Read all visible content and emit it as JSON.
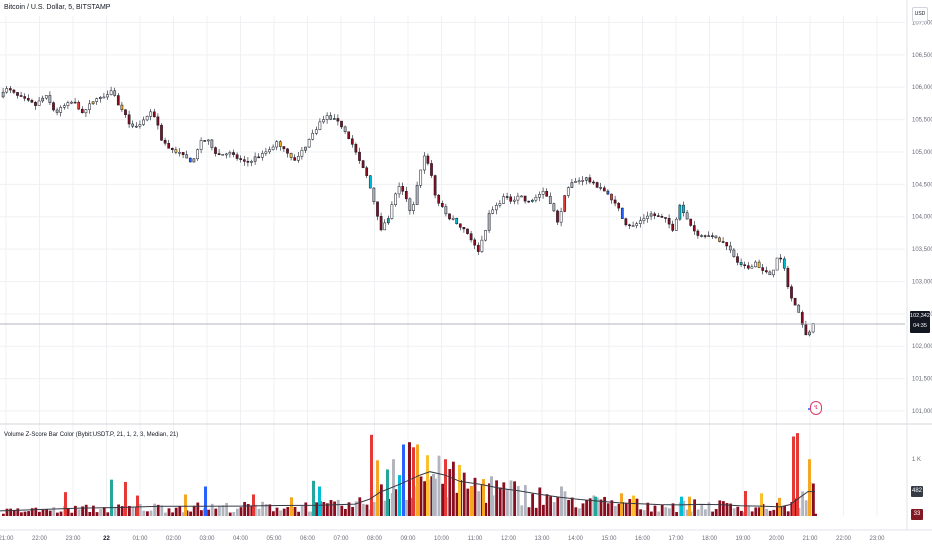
{
  "title": "Bitcoin / U.S. Dollar, 5, BITSTAMP",
  "currency_button": "USD",
  "price_badge": {
    "price": "102,342",
    "countdown": "04:35"
  },
  "volume_badges": [
    {
      "value": "482",
      "color": "#363a45"
    },
    {
      "value": "33",
      "color": "#801922"
    }
  ],
  "indicator_title": "Volume Z-Score Bar Color (Bybit:USDT.P, 21, 1, 2, 3, Median, 21)",
  "dividend_marker": "↯",
  "colors": {
    "up": "#ffffff",
    "down": "#880e1f",
    "gray": "#b2b5be",
    "orange": "#f5a623",
    "teal": "#26a69a",
    "cyan": "#00bcd4",
    "blue": "#2962ff",
    "red": "#e53935",
    "yellow": "#fbc02d",
    "ma_line": "#363a45",
    "grid": "#eef0f3"
  },
  "chart_data": {
    "type": "candlestick",
    "price_axis": {
      "ticks": [
        101000,
        101500,
        102000,
        102500,
        103000,
        103500,
        104000,
        104500,
        105000,
        105500,
        106000,
        106500,
        107000
      ],
      "tick_labels": [
        "101,000",
        "101,500",
        "102,000",
        "102,500",
        "103,000",
        "103,500",
        "104,000",
        "104,500",
        "105,000",
        "105,500",
        "106,000",
        "106,500",
        "107,000"
      ],
      "range": [
        100860,
        107100
      ]
    },
    "time_axis": {
      "labels": [
        "21:00",
        "22:00",
        "23:00",
        "22",
        "01:00",
        "02:00",
        "03:00",
        "04:00",
        "05:00",
        "06:00",
        "07:00",
        "08:00",
        "09:00",
        "10:00",
        "11:00",
        "12:00",
        "13:00",
        "14:00",
        "15:00",
        "16:00",
        "17:00",
        "18:00",
        "19:00",
        "20:00",
        "21:00",
        "22:00",
        "23:00"
      ]
    },
    "last_price": 102342,
    "price_path": [
      [
        0,
        105850
      ],
      [
        7,
        105980
      ],
      [
        12,
        105950
      ],
      [
        20,
        105860
      ],
      [
        30,
        105780
      ],
      [
        38,
        105720
      ],
      [
        48,
        105870
      ],
      [
        58,
        105600
      ],
      [
        66,
        105700
      ],
      [
        76,
        105780
      ],
      [
        86,
        105600
      ],
      [
        96,
        105800
      ],
      [
        106,
        105850
      ],
      [
        114,
        105980
      ],
      [
        122,
        105700
      ],
      [
        128,
        105550
      ],
      [
        136,
        105350
      ],
      [
        144,
        105450
      ],
      [
        152,
        105600
      ],
      [
        158,
        105550
      ],
      [
        164,
        105200
      ],
      [
        172,
        105050
      ],
      [
        180,
        105000
      ],
      [
        188,
        104900
      ],
      [
        196,
        104850
      ],
      [
        204,
        105200
      ],
      [
        212,
        105150
      ],
      [
        220,
        104950
      ],
      [
        230,
        105000
      ],
      [
        240,
        104900
      ],
      [
        248,
        104820
      ],
      [
        256,
        104900
      ],
      [
        264,
        104950
      ],
      [
        272,
        105050
      ],
      [
        280,
        105150
      ],
      [
        290,
        105000
      ],
      [
        298,
        104850
      ],
      [
        306,
        105050
      ],
      [
        314,
        105250
      ],
      [
        322,
        105450
      ],
      [
        330,
        105550
      ],
      [
        338,
        105480
      ],
      [
        346,
        105380
      ],
      [
        354,
        105150
      ],
      [
        362,
        104850
      ],
      [
        370,
        104600
      ],
      [
        378,
        104150
      ],
      [
        384,
        103800
      ],
      [
        390,
        103950
      ],
      [
        396,
        104250
      ],
      [
        402,
        104500
      ],
      [
        408,
        104300
      ],
      [
        414,
        104000
      ],
      [
        420,
        104500
      ],
      [
        426,
        104950
      ],
      [
        432,
        104800
      ],
      [
        438,
        104300
      ],
      [
        444,
        104150
      ],
      [
        450,
        104000
      ],
      [
        456,
        103950
      ],
      [
        462,
        103850
      ],
      [
        468,
        103800
      ],
      [
        474,
        103650
      ],
      [
        480,
        103450
      ],
      [
        486,
        103700
      ],
      [
        492,
        104050
      ],
      [
        498,
        104150
      ],
      [
        506,
        104300
      ],
      [
        514,
        104250
      ],
      [
        522,
        104350
      ],
      [
        530,
        104200
      ],
      [
        538,
        104300
      ],
      [
        546,
        104400
      ],
      [
        554,
        104200
      ],
      [
        560,
        103900
      ],
      [
        566,
        104250
      ],
      [
        572,
        104500
      ],
      [
        580,
        104550
      ],
      [
        588,
        104600
      ],
      [
        596,
        104500
      ],
      [
        604,
        104450
      ],
      [
        612,
        104300
      ],
      [
        620,
        104150
      ],
      [
        628,
        103900
      ],
      [
        636,
        103850
      ],
      [
        644,
        103950
      ],
      [
        652,
        104050
      ],
      [
        660,
        104000
      ],
      [
        668,
        103950
      ],
      [
        676,
        103800
      ],
      [
        682,
        104200
      ],
      [
        688,
        104000
      ],
      [
        694,
        103850
      ],
      [
        702,
        103700
      ],
      [
        710,
        103750
      ],
      [
        718,
        103650
      ],
      [
        726,
        103600
      ],
      [
        734,
        103450
      ],
      [
        742,
        103250
      ],
      [
        750,
        103200
      ],
      [
        758,
        103300
      ],
      [
        766,
        103150
      ],
      [
        774,
        103100
      ],
      [
        780,
        103400
      ],
      [
        786,
        103250
      ],
      [
        792,
        102800
      ],
      [
        798,
        102600
      ],
      [
        804,
        102400
      ],
      [
        810,
        102100
      ],
      [
        815,
        102342
      ]
    ],
    "volume_axis": {
      "tick_labels": [
        "1 K"
      ],
      "range": [
        0,
        1550
      ]
    },
    "volume_ma_path": [
      [
        0,
        90
      ],
      [
        40,
        115
      ],
      [
        80,
        140
      ],
      [
        120,
        150
      ],
      [
        160,
        170
      ],
      [
        200,
        170
      ],
      [
        240,
        175
      ],
      [
        280,
        185
      ],
      [
        320,
        190
      ],
      [
        355,
        210
      ],
      [
        370,
        300
      ],
      [
        380,
        420
      ],
      [
        400,
        560
      ],
      [
        420,
        720
      ],
      [
        430,
        780
      ],
      [
        445,
        720
      ],
      [
        460,
        610
      ],
      [
        480,
        560
      ],
      [
        500,
        490
      ],
      [
        520,
        440
      ],
      [
        540,
        380
      ],
      [
        560,
        330
      ],
      [
        580,
        290
      ],
      [
        600,
        260
      ],
      [
        620,
        230
      ],
      [
        640,
        215
      ],
      [
        660,
        200
      ],
      [
        680,
        195
      ],
      [
        700,
        205
      ],
      [
        720,
        200
      ],
      [
        740,
        180
      ],
      [
        760,
        175
      ],
      [
        780,
        160
      ],
      [
        790,
        200
      ],
      [
        800,
        330
      ],
      [
        808,
        430
      ],
      [
        815,
        430
      ]
    ],
    "volume_spikes": [
      {
        "x": 370,
        "v": 1430,
        "color": "red"
      },
      {
        "x": 376,
        "v": 980,
        "color": "orange"
      },
      {
        "x": 386,
        "v": 820,
        "color": "teal"
      },
      {
        "x": 392,
        "v": 1000,
        "color": "gray"
      },
      {
        "x": 398,
        "v": 720,
        "color": "cyan"
      },
      {
        "x": 402,
        "v": 1260,
        "color": "blue"
      },
      {
        "x": 408,
        "v": 1300,
        "color": "down"
      },
      {
        "x": 412,
        "v": 1210,
        "color": "red"
      },
      {
        "x": 416,
        "v": 1260,
        "color": "orange"
      },
      {
        "x": 426,
        "v": 1070,
        "color": "yellow"
      },
      {
        "x": 432,
        "v": 740,
        "color": "gray"
      },
      {
        "x": 444,
        "v": 1000,
        "color": "red"
      },
      {
        "x": 458,
        "v": 900,
        "color": "yellow"
      },
      {
        "x": 470,
        "v": 520,
        "color": "orange"
      },
      {
        "x": 482,
        "v": 650,
        "color": "orange"
      },
      {
        "x": 490,
        "v": 700,
        "color": "gray"
      },
      {
        "x": 64,
        "v": 420,
        "color": "red"
      },
      {
        "x": 110,
        "v": 640,
        "color": "teal"
      },
      {
        "x": 124,
        "v": 600,
        "color": "red"
      },
      {
        "x": 136,
        "v": 360,
        "color": "red"
      },
      {
        "x": 184,
        "v": 380,
        "color": "orange"
      },
      {
        "x": 204,
        "v": 520,
        "color": "blue"
      },
      {
        "x": 252,
        "v": 380,
        "color": "red"
      },
      {
        "x": 290,
        "v": 330,
        "color": "orange"
      },
      {
        "x": 312,
        "v": 620,
        "color": "teal"
      },
      {
        "x": 318,
        "v": 520,
        "color": "cyan"
      },
      {
        "x": 560,
        "v": 520,
        "color": "gray"
      },
      {
        "x": 594,
        "v": 340,
        "color": "teal"
      },
      {
        "x": 620,
        "v": 400,
        "color": "orange"
      },
      {
        "x": 632,
        "v": 360,
        "color": "yellow"
      },
      {
        "x": 680,
        "v": 340,
        "color": "cyan"
      },
      {
        "x": 688,
        "v": 340,
        "color": "orange"
      },
      {
        "x": 744,
        "v": 440,
        "color": "red"
      },
      {
        "x": 760,
        "v": 400,
        "color": "yellow"
      },
      {
        "x": 778,
        "v": 320,
        "color": "orange"
      },
      {
        "x": 792,
        "v": 1400,
        "color": "red"
      },
      {
        "x": 796,
        "v": 1460,
        "color": "red"
      },
      {
        "x": 808,
        "v": 1000,
        "color": "orange"
      },
      {
        "x": 814,
        "v": 40,
        "color": "down"
      }
    ],
    "grid": true
  }
}
